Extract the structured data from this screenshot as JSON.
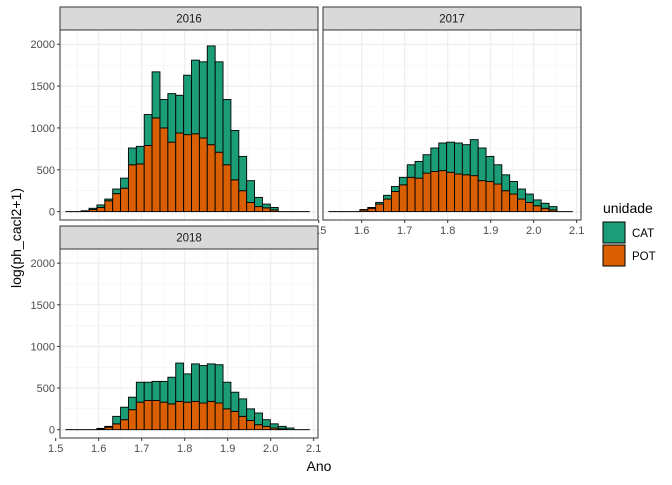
{
  "chart_data": {
    "type": "bar",
    "subtype": "faceted stacked histogram",
    "title": "",
    "xlabel": "Ano",
    "ylabel": "log(ph_cacl2+1)",
    "xlim": [
      1.51,
      2.11
    ],
    "ylim": [
      -100,
      2170
    ],
    "x_ticks": [
      1.5,
      1.6,
      1.7,
      1.8,
      1.9,
      2.0,
      2.1
    ],
    "x_tick_labels": [
      "1.5",
      "1.6",
      "1.7",
      "1.8",
      "1.9",
      "2.0",
      "2.1"
    ],
    "y_ticks": [
      0,
      500,
      1000,
      1500,
      2000
    ],
    "y_tick_labels": [
      "0",
      "500",
      "1000",
      "1500",
      "2000"
    ],
    "grid": true,
    "bin_width": 0.0183,
    "x": [
      1.5317,
      1.55,
      1.5683,
      1.5867,
      1.605,
      1.6233,
      1.6417,
      1.66,
      1.6783,
      1.6967,
      1.715,
      1.7333,
      1.7517,
      1.77,
      1.7883,
      1.8067,
      1.825,
      1.8433,
      1.8617,
      1.88,
      1.8983,
      1.9167,
      1.935,
      1.9533,
      1.9717,
      1.99,
      2.0083,
      2.0267,
      2.045,
      2.0633,
      2.0817
    ],
    "legend": {
      "title": "unidade",
      "position": "right",
      "entries": [
        {
          "label": "CAT",
          "color": "#1B9E77"
        },
        {
          "label": "POT",
          "color": "#D95F02"
        }
      ]
    },
    "panels": [
      {
        "label": "2016",
        "series": [
          {
            "name": "POT",
            "values": [
              0,
              0,
              10,
              25,
              50,
              130,
              215,
              280,
              560,
              570,
              790,
              1120,
              1000,
              830,
              940,
              920,
              930,
              880,
              800,
              710,
              560,
              380,
              250,
              110,
              60,
              45,
              20,
              0,
              0,
              0,
              0
            ]
          },
          {
            "name": "CAT",
            "values": [
              0,
              0,
              0,
              15,
              30,
              20,
              55,
              120,
              200,
              210,
              370,
              550,
              340,
              580,
              450,
              710,
              880,
              910,
              1180,
              1080,
              780,
              590,
              410,
              260,
              110,
              45,
              30,
              0,
              0,
              0,
              0
            ]
          }
        ]
      },
      {
        "label": "2017",
        "series": [
          {
            "name": "POT",
            "values": [
              0,
              0,
              0,
              0,
              20,
              40,
              90,
              150,
              240,
              320,
              410,
              400,
              460,
              480,
              490,
              470,
              450,
              440,
              430,
              370,
              360,
              330,
              250,
              210,
              150,
              110,
              70,
              40,
              20,
              0,
              0
            ]
          },
          {
            "name": "CAT",
            "values": [
              0,
              0,
              0,
              0,
              5,
              10,
              20,
              45,
              60,
              90,
              150,
              200,
              220,
              280,
              330,
              360,
              370,
              360,
              430,
              390,
              300,
              230,
              190,
              150,
              120,
              100,
              70,
              60,
              40,
              0,
              0
            ]
          }
        ]
      },
      {
        "label": "2018",
        "series": [
          {
            "name": "POT",
            "values": [
              0,
              0,
              0,
              0,
              10,
              30,
              70,
              120,
              240,
              330,
              350,
              350,
              330,
              310,
              340,
              330,
              340,
              320,
              340,
              320,
              250,
              220,
              160,
              110,
              60,
              40,
              20,
              10,
              0,
              0,
              0
            ]
          },
          {
            "name": "CAT",
            "values": [
              0,
              0,
              0,
              0,
              5,
              10,
              90,
              150,
              150,
              240,
              220,
              230,
              250,
              320,
              460,
              340,
              450,
              450,
              450,
              460,
              320,
              230,
              210,
              140,
              140,
              80,
              50,
              30,
              20,
              0,
              0
            ]
          }
        ]
      }
    ]
  }
}
